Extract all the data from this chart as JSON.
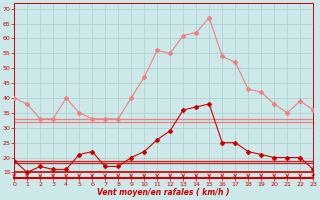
{
  "x": [
    0,
    1,
    2,
    3,
    4,
    5,
    6,
    7,
    8,
    9,
    10,
    11,
    12,
    13,
    14,
    15,
    16,
    17,
    18,
    19,
    20,
    21,
    22,
    23
  ],
  "rafales": [
    40,
    38,
    33,
    33,
    40,
    35,
    33,
    33,
    33,
    40,
    47,
    56,
    55,
    61,
    62,
    67,
    54,
    52,
    43,
    42,
    38,
    35,
    39,
    36
  ],
  "flat1": 33,
  "flat2": 32,
  "flat3": 19,
  "flat4": 18,
  "wind_low": [
    19,
    15,
    17,
    16,
    16,
    21,
    22,
    17,
    17,
    20,
    22,
    26,
    29,
    36,
    37,
    38,
    25,
    25,
    22,
    21,
    20,
    20,
    20,
    16
  ],
  "color_light": "#f08080",
  "color_dark": "#cc0000",
  "color_flat_light": "#e09090",
  "color_flat_dark": "#cc2020",
  "bg_color": "#cce8e8",
  "grid_color": "#aacece",
  "xlabel": "Vent moyen/en rafales ( km/h )",
  "yticks": [
    15,
    20,
    25,
    30,
    35,
    40,
    45,
    50,
    55,
    60,
    65,
    70
  ],
  "xticks": [
    0,
    1,
    2,
    3,
    4,
    5,
    6,
    7,
    8,
    9,
    10,
    11,
    12,
    13,
    14,
    15,
    16,
    17,
    18,
    19,
    20,
    21,
    22,
    23
  ],
  "ylim": [
    13,
    72
  ],
  "xlim": [
    0,
    23
  ]
}
